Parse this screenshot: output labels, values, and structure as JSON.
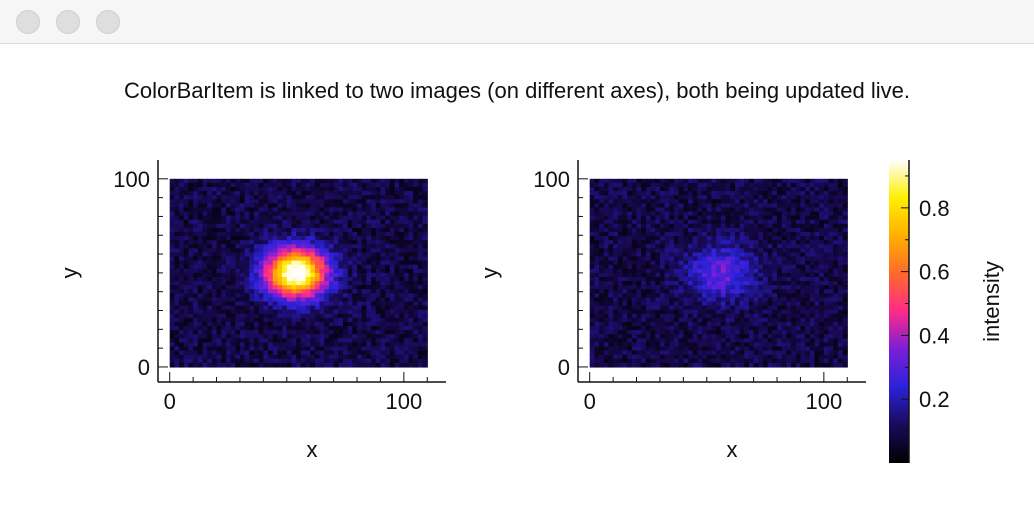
{
  "window": {
    "caption": "ColorBarItem is linked to two images (on different axes), both being updated live."
  },
  "chart_data": [
    {
      "type": "heatmap",
      "title": "",
      "xlabel": "x",
      "ylabel": "y",
      "xlim": [
        -5,
        118
      ],
      "ylim": [
        -8,
        110
      ],
      "xticks": [
        0,
        100
      ],
      "yticks": [
        0,
        100
      ],
      "image_extent": {
        "x": [
          0,
          110
        ],
        "y": [
          0,
          100
        ]
      },
      "blob": {
        "cx": 54,
        "cy": 50,
        "sigma": 9,
        "peak": 0.95
      },
      "background_level": 0.09,
      "grid": false
    },
    {
      "type": "heatmap",
      "title": "",
      "xlabel": "x",
      "ylabel": "y",
      "xlim": [
        -5,
        118
      ],
      "ylim": [
        -8,
        110
      ],
      "xticks": [
        0,
        100
      ],
      "yticks": [
        0,
        100
      ],
      "image_extent": {
        "x": [
          0,
          110
        ],
        "y": [
          0,
          100
        ]
      },
      "blob": {
        "cx": 56,
        "cy": 50,
        "sigma": 10,
        "peak": 0.24
      },
      "background_level": 0.09,
      "grid": false
    }
  ],
  "colorbar": {
    "label": "intensity",
    "range": [
      0,
      0.95
    ],
    "ticks": [
      "0.2",
      "0.4",
      "0.6",
      "0.8"
    ],
    "tick_values": [
      0.2,
      0.4,
      0.6,
      0.8
    ],
    "colormap": [
      "#000000",
      "#1a0a5a",
      "#2a22d8",
      "#7a1ed8",
      "#ff2a8a",
      "#ff6a2a",
      "#ffb000",
      "#ffef00",
      "#ffffff"
    ]
  }
}
